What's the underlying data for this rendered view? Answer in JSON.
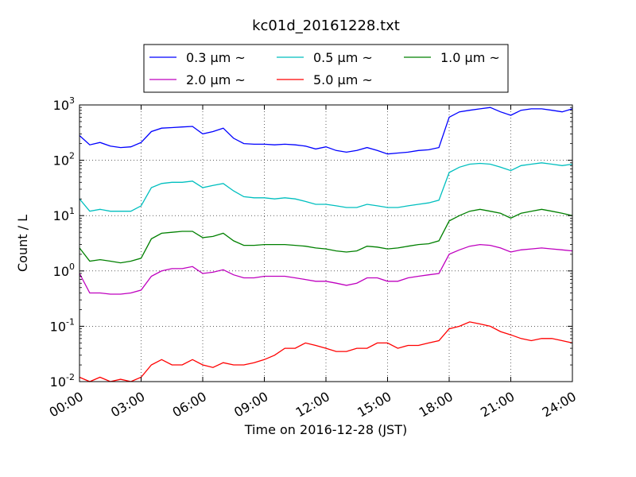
{
  "chart_data": {
    "type": "line",
    "title": "kc01d_20161228.txt",
    "xlabel": "Time on 2016-12-28 (JST)",
    "ylabel": "Count / L",
    "x_ticks": [
      "00:00",
      "03:00",
      "06:00",
      "09:00",
      "12:00",
      "15:00",
      "18:00",
      "21:00",
      "24:00"
    ],
    "y_ticks": [
      {
        "base": "10",
        "exp": "-2"
      },
      {
        "base": "10",
        "exp": "-1"
      },
      {
        "base": "10",
        "exp": "0"
      },
      {
        "base": "10",
        "exp": "1"
      },
      {
        "base": "10",
        "exp": "2"
      },
      {
        "base": "10",
        "exp": "3"
      }
    ],
    "x_range_hours": [
      0,
      24
    ],
    "y_range": [
      0.01,
      1000
    ],
    "y_scale": "log",
    "grid": true,
    "legend_position": "top-center, above plot",
    "series": [
      {
        "name": "0.3 μm ~",
        "color": "#0000ff",
        "x": [
          0,
          0.5,
          1,
          1.5,
          2,
          2.5,
          3,
          3.5,
          4,
          4.5,
          5,
          5.5,
          6,
          6.5,
          7,
          7.5,
          8,
          8.5,
          9,
          9.5,
          10,
          10.5,
          11,
          11.5,
          12,
          12.5,
          13,
          13.5,
          14,
          14.5,
          15,
          15.5,
          16,
          16.5,
          17,
          17.5,
          18,
          18.5,
          19,
          19.5,
          20,
          20.5,
          21,
          21.5,
          22,
          22.5,
          23,
          23.5,
          24
        ],
        "y": [
          280,
          190,
          210,
          180,
          170,
          175,
          210,
          330,
          380,
          390,
          400,
          410,
          300,
          330,
          380,
          250,
          200,
          195,
          195,
          190,
          195,
          190,
          180,
          160,
          175,
          150,
          140,
          150,
          170,
          150,
          130,
          135,
          140,
          150,
          155,
          170,
          600,
          750,
          800,
          850,
          900,
          750,
          650,
          800,
          850,
          850,
          800,
          750,
          850
        ]
      },
      {
        "name": "0.5 μm ~",
        "color": "#00bfbf",
        "x": [
          0,
          0.5,
          1,
          1.5,
          2,
          2.5,
          3,
          3.5,
          4,
          4.5,
          5,
          5.5,
          6,
          6.5,
          7,
          7.5,
          8,
          8.5,
          9,
          9.5,
          10,
          10.5,
          11,
          11.5,
          12,
          12.5,
          13,
          13.5,
          14,
          14.5,
          15,
          15.5,
          16,
          16.5,
          17,
          17.5,
          18,
          18.5,
          19,
          19.5,
          20,
          20.5,
          21,
          21.5,
          22,
          22.5,
          23,
          23.5,
          24
        ],
        "y": [
          20,
          12,
          13,
          12,
          12,
          12,
          15,
          32,
          38,
          40,
          40,
          42,
          32,
          35,
          38,
          28,
          22,
          21,
          21,
          20,
          21,
          20,
          18,
          16,
          16,
          15,
          14,
          14,
          16,
          15,
          14,
          14,
          15,
          16,
          17,
          19,
          60,
          75,
          85,
          88,
          85,
          75,
          65,
          80,
          85,
          90,
          85,
          80,
          85
        ]
      },
      {
        "name": "1.0 μm ~",
        "color": "#008000",
        "x": [
          0,
          0.5,
          1,
          1.5,
          2,
          2.5,
          3,
          3.5,
          4,
          4.5,
          5,
          5.5,
          6,
          6.5,
          7,
          7.5,
          8,
          8.5,
          9,
          9.5,
          10,
          10.5,
          11,
          11.5,
          12,
          12.5,
          13,
          13.5,
          14,
          14.5,
          15,
          15.5,
          16,
          16.5,
          17,
          17.5,
          18,
          18.5,
          19,
          19.5,
          20,
          20.5,
          21,
          21.5,
          22,
          22.5,
          23,
          23.5,
          24
        ],
        "y": [
          2.6,
          1.5,
          1.6,
          1.5,
          1.4,
          1.5,
          1.7,
          3.8,
          4.8,
          5,
          5.2,
          5.2,
          4,
          4.2,
          4.8,
          3.5,
          2.9,
          2.9,
          3,
          3,
          3,
          2.9,
          2.8,
          2.6,
          2.5,
          2.3,
          2.2,
          2.3,
          2.8,
          2.7,
          2.5,
          2.6,
          2.8,
          3,
          3.1,
          3.5,
          8,
          10,
          12,
          13,
          12,
          11,
          9,
          11,
          12,
          13,
          12,
          11,
          10
        ]
      },
      {
        "name": "2.0 μm ~",
        "color": "#bf00bf",
        "x": [
          0,
          0.5,
          1,
          1.5,
          2,
          2.5,
          3,
          3.5,
          4,
          4.5,
          5,
          5.5,
          6,
          6.5,
          7,
          7.5,
          8,
          8.5,
          9,
          9.5,
          10,
          10.5,
          11,
          11.5,
          12,
          12.5,
          13,
          13.5,
          14,
          14.5,
          15,
          15.5,
          16,
          16.5,
          17,
          17.5,
          18,
          18.5,
          19,
          19.5,
          20,
          20.5,
          21,
          21.5,
          22,
          22.5,
          23,
          23.5,
          24
        ],
        "y": [
          0.9,
          0.4,
          0.4,
          0.38,
          0.38,
          0.4,
          0.45,
          0.8,
          1,
          1.1,
          1.1,
          1.2,
          0.9,
          0.95,
          1.05,
          0.85,
          0.75,
          0.75,
          0.8,
          0.8,
          0.8,
          0.75,
          0.7,
          0.65,
          0.65,
          0.6,
          0.55,
          0.6,
          0.75,
          0.75,
          0.65,
          0.65,
          0.75,
          0.8,
          0.85,
          0.9,
          2,
          2.4,
          2.8,
          3,
          2.9,
          2.6,
          2.2,
          2.4,
          2.5,
          2.6,
          2.5,
          2.4,
          2.3
        ]
      },
      {
        "name": "5.0 μm ~",
        "color": "#ff0000",
        "x": [
          0,
          0.5,
          1,
          1.5,
          2,
          2.5,
          3,
          3.5,
          4,
          4.5,
          5,
          5.5,
          6,
          6.5,
          7,
          7.5,
          8,
          8.5,
          9,
          9.5,
          10,
          10.5,
          11,
          11.5,
          12,
          12.5,
          13,
          13.5,
          14,
          14.5,
          15,
          15.5,
          16,
          16.5,
          17,
          17.5,
          18,
          18.5,
          19,
          19.5,
          20,
          20.5,
          21,
          21.5,
          22,
          22.5,
          23,
          23.5,
          24
        ],
        "y": [
          0.012,
          0.01,
          0.012,
          0.01,
          0.011,
          0.01,
          0.012,
          0.02,
          0.025,
          0.02,
          0.02,
          0.025,
          0.02,
          0.018,
          0.022,
          0.02,
          0.02,
          0.022,
          0.025,
          0.03,
          0.04,
          0.04,
          0.05,
          0.045,
          0.04,
          0.035,
          0.035,
          0.04,
          0.04,
          0.05,
          0.05,
          0.04,
          0.045,
          0.045,
          0.05,
          0.055,
          0.09,
          0.1,
          0.12,
          0.11,
          0.1,
          0.08,
          0.07,
          0.06,
          0.055,
          0.06,
          0.06,
          0.055,
          0.05
        ]
      }
    ]
  }
}
